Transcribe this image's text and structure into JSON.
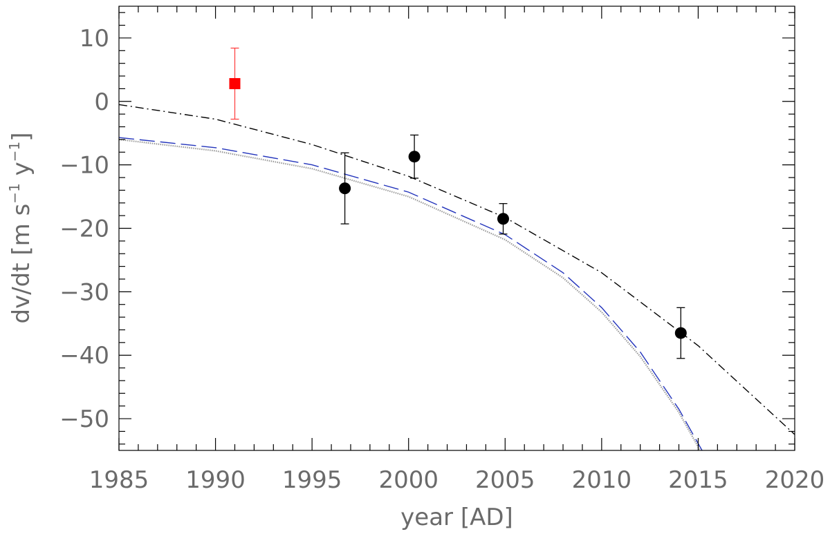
{
  "chart_data": {
    "type": "scatter",
    "title": "",
    "xlabel": "year [AD]",
    "ylabel": {
      "prefix": "dv/dt [m s",
      "sup1": "−1",
      "middle": " y",
      "sup2": "−1",
      "suffix": "]"
    },
    "xlim": [
      1985,
      2020
    ],
    "ylim": [
      -55,
      15
    ],
    "x_ticks": [
      1985,
      1990,
      1995,
      2000,
      2005,
      2010,
      2015,
      2020
    ],
    "x_tick_labels": [
      "1985",
      "1990",
      "1995",
      "2000",
      "2005",
      "2010",
      "2015",
      "2020"
    ],
    "x_minor_step": 1,
    "y_ticks": [
      10,
      0,
      -10,
      -20,
      -30,
      -40,
      -50
    ],
    "y_tick_labels": [
      "10",
      "0",
      "−10",
      "−20",
      "−30",
      "−40",
      "−50"
    ],
    "y_minor_step": 2,
    "grid": false,
    "points": [
      {
        "x": 1991.0,
        "y": 2.8,
        "err": 5.6,
        "marker": "square",
        "color": "#ff0000",
        "err_color": "#ff4444"
      },
      {
        "x": 1996.7,
        "y": -13.7,
        "err": 5.6,
        "marker": "circle",
        "color": "#000000",
        "err_color": "#000000"
      },
      {
        "x": 2000.3,
        "y": -8.7,
        "err": 3.4,
        "marker": "circle",
        "color": "#000000",
        "err_color": "#000000"
      },
      {
        "x": 2004.9,
        "y": -18.5,
        "err": 2.4,
        "marker": "circle",
        "color": "#000000",
        "err_color": "#000000"
      },
      {
        "x": 2014.1,
        "y": -36.5,
        "err": 4.0,
        "marker": "circle",
        "color": "#000000",
        "err_color": "#000000"
      }
    ],
    "curves": [
      {
        "style": "dashdot",
        "color": "#000000",
        "x": [
          1985,
          1990,
          1995,
          2000,
          2005,
          2010,
          2015,
          2020
        ],
        "y": [
          -0.5,
          -2.8,
          -6.8,
          -11.8,
          -18.3,
          -27.0,
          -38.5,
          -52.5
        ]
      },
      {
        "style": "dashed",
        "color": "#2233bb",
        "x": [
          1985,
          1990,
          1995,
          2000,
          2005,
          2008,
          2010,
          2012,
          2014,
          2015.2
        ],
        "y": [
          -5.7,
          -7.3,
          -10.0,
          -14.3,
          -21.0,
          -27.0,
          -32.5,
          -39.5,
          -48.5,
          -55
        ]
      },
      {
        "style": "dotted",
        "color": "#999999",
        "x": [
          1985,
          1990,
          1995,
          2000,
          2005,
          2008,
          2010,
          2012,
          2014,
          2015.1
        ],
        "y": [
          -6.0,
          -7.8,
          -10.6,
          -15.0,
          -21.8,
          -27.8,
          -33.2,
          -40.2,
          -49.0,
          -55
        ]
      }
    ]
  }
}
